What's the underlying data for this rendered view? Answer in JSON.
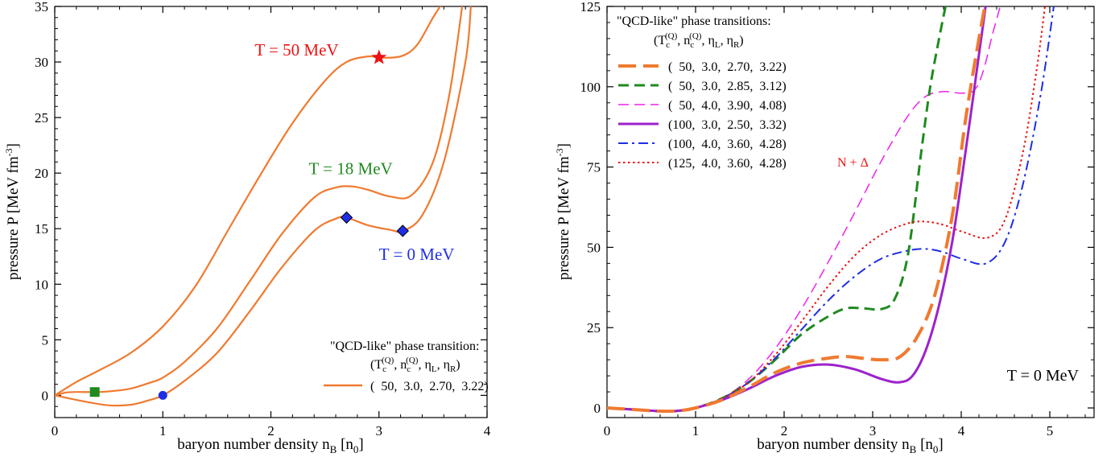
{
  "chart_data": [
    {
      "type": "line",
      "xlabel": "baryon number density n_B [n_0]",
      "ylabel": "pressure P [MeV fm^-3]",
      "xlim": [
        0,
        4
      ],
      "ylim": [
        -2,
        35
      ],
      "xticks": [
        "0",
        "1",
        "2",
        "3",
        "4"
      ],
      "yticks": [
        "0",
        "5",
        "10",
        "15",
        "20",
        "25",
        "30",
        "35"
      ],
      "grid": false,
      "series": [
        {
          "name": "T = 0 MeV",
          "color": "#f07a30",
          "x": [
            0,
            0.3,
            0.5,
            0.7,
            0.85,
            1.0,
            1.2,
            1.5,
            1.8,
            2.1,
            2.4,
            2.6,
            2.7,
            2.9,
            3.1,
            3.22,
            3.4,
            3.6,
            3.8,
            3.85
          ],
          "y": [
            0,
            -0.6,
            -0.9,
            -0.85,
            -0.5,
            0,
            1.3,
            3.8,
            7.5,
            11.5,
            14.8,
            15.9,
            16.0,
            15.3,
            14.9,
            14.8,
            16.2,
            21,
            30,
            35
          ]
        },
        {
          "name": "T = 18 MeV",
          "color": "#f07a30",
          "x": [
            0,
            0.1,
            0.2,
            0.37,
            0.5,
            0.7,
            0.9,
            1.0,
            1.2,
            1.5,
            1.8,
            2.1,
            2.4,
            2.6,
            2.75,
            2.9,
            3.1,
            3.3,
            3.5,
            3.65,
            3.77
          ],
          "y": [
            0,
            0.25,
            0.3,
            0.3,
            0.35,
            0.6,
            1.2,
            1.6,
            3.0,
            6.0,
            10.2,
            14.5,
            17.8,
            18.7,
            18.8,
            18.5,
            17.9,
            18.0,
            21.0,
            27,
            35
          ]
        },
        {
          "name": "T = 50 MeV",
          "color": "#f07a30",
          "x": [
            0,
            0.2,
            0.4,
            0.7,
            1.0,
            1.3,
            1.6,
            1.9,
            2.2,
            2.5,
            2.7,
            2.9,
            3.0,
            3.2,
            3.35,
            3.5,
            3.6,
            3.7
          ],
          "y": [
            0,
            1.2,
            2.2,
            3.8,
            6.2,
            9.8,
            14.8,
            19.8,
            24.5,
            28.3,
            30.0,
            30.5,
            30.4,
            30.5,
            31.5,
            34.0,
            35.5,
            37
          ]
        }
      ],
      "markers": [
        {
          "shape": "square",
          "color": "#1f8a1f",
          "x": 0.37,
          "y": 0.3
        },
        {
          "shape": "circle",
          "color": "#1e2ee6",
          "x": 1.0,
          "y": 0
        },
        {
          "shape": "diamond",
          "color": "#1e2ee6",
          "x": 2.7,
          "y": 16.0
        },
        {
          "shape": "diamond",
          "color": "#1e2ee6",
          "x": 3.22,
          "y": 14.8
        },
        {
          "shape": "star",
          "color": "#ee1111",
          "x": 3.0,
          "y": 30.4
        }
      ],
      "annotations": [
        {
          "text": "T = 50 MeV",
          "color": "#ee1111",
          "x": 1.85,
          "y": 30.6
        },
        {
          "text": "T = 18 MeV",
          "color": "#1f8a1f",
          "x": 2.35,
          "y": 19.9
        },
        {
          "text": "T = 0 MeV",
          "color": "#1e2ee6",
          "x": 3.0,
          "y": 12.2
        }
      ],
      "legend": {
        "placement": "bottom-right",
        "title": "\"QCD-like\" phase transition:",
        "header": [
          "(T_c^(Q),",
          "n_c^(Q),",
          "η_L,",
          "η_R)"
        ],
        "entries": [
          {
            "label": "(  50,  3.0,  2.70,  3.22)",
            "color": "#f07a30",
            "dash": "solid"
          }
        ]
      }
    },
    {
      "type": "line",
      "xlabel": "baryon number density n_B [n_0]",
      "ylabel": "pressure P [MeV fm^-3]",
      "xlim": [
        0,
        5.5
      ],
      "ylim": [
        -3,
        125
      ],
      "xticks": [
        "0",
        "1",
        "2",
        "3",
        "4",
        "5"
      ],
      "yticks": [
        "0",
        "25",
        "50",
        "75",
        "100",
        "125"
      ],
      "grid": false,
      "annotation": "T = 0 MeV",
      "series": [
        {
          "name": "(  50,  3.0,  2.70,  3.22)",
          "color": "#f07a30",
          "dash": "longdash",
          "width": 4,
          "x": [
            0,
            0.3,
            0.6,
            0.8,
            1.0,
            1.3,
            1.6,
            1.9,
            2.2,
            2.5,
            2.7,
            2.9,
            3.1,
            3.3,
            3.5,
            3.7,
            3.9,
            4.05,
            4.2,
            4.3
          ],
          "y": [
            0,
            -0.5,
            -1.0,
            -0.9,
            0,
            2.5,
            6.5,
            11.0,
            14.0,
            15.5,
            16.0,
            15.4,
            15.0,
            15.8,
            22.0,
            35.0,
            60.0,
            90.0,
            115.0,
            130.0
          ]
        },
        {
          "name": "(  50,  3.0,  2.85,  3.12)",
          "color": "#1f8a1f",
          "dash": "dash",
          "width": 3,
          "x": [
            0,
            0.3,
            0.6,
            0.8,
            1.0,
            1.3,
            1.6,
            1.9,
            2.2,
            2.5,
            2.7,
            2.9,
            3.1,
            3.25,
            3.4,
            3.55,
            3.65,
            3.75,
            3.83
          ],
          "y": [
            0,
            -0.5,
            -1.0,
            -0.9,
            0,
            3.0,
            8.0,
            15.0,
            23.0,
            28.5,
            31.0,
            31.0,
            30.8,
            34.0,
            48.0,
            80.0,
            100.0,
            115.0,
            126.0
          ]
        },
        {
          "name": "(  50,  4.0,  3.90,  4.08)",
          "color": "#ee22ee",
          "dash": "dash",
          "width": 1.5,
          "x": [
            0,
            0.3,
            0.6,
            0.8,
            1.0,
            1.3,
            1.6,
            1.9,
            2.2,
            2.5,
            2.8,
            3.1,
            3.4,
            3.6,
            3.8,
            4.0,
            4.15,
            4.25,
            4.35,
            4.45
          ],
          "y": [
            0,
            -0.5,
            -1.0,
            -0.9,
            0,
            3.0,
            9.0,
            18.5,
            31.0,
            45.5,
            61.0,
            77.0,
            91.0,
            97.0,
            98.5,
            98.0,
            99.0,
            105.0,
            116.0,
            126.0
          ]
        },
        {
          "name": "(100,  3.0,  2.50,  3.32)",
          "color": "#9c22cc",
          "dash": "solid",
          "width": 3,
          "x": [
            0,
            0.3,
            0.6,
            0.8,
            1.0,
            1.3,
            1.6,
            1.9,
            2.2,
            2.5,
            2.8,
            3.1,
            3.3,
            3.45,
            3.6,
            3.75,
            3.9,
            4.05,
            4.2,
            4.28
          ],
          "y": [
            0,
            -0.5,
            -1.0,
            -0.9,
            0,
            2.5,
            6.0,
            10.0,
            12.8,
            13.5,
            12.0,
            9.0,
            8.0,
            10.0,
            18.0,
            32.0,
            52.0,
            80.0,
            110.0,
            126.0
          ]
        },
        {
          "name": "(100,  4.0,  3.60,  4.28)",
          "color": "#1e2ee6",
          "dash": "dashdot",
          "width": 2,
          "x": [
            0,
            0.3,
            0.6,
            0.8,
            1.0,
            1.3,
            1.6,
            1.9,
            2.2,
            2.5,
            2.8,
            3.1,
            3.4,
            3.6,
            3.8,
            4.0,
            4.28,
            4.5,
            4.7,
            4.9,
            5.05
          ],
          "y": [
            0,
            -0.5,
            -1.0,
            -0.9,
            0,
            3.0,
            8.0,
            15.5,
            24.5,
            33.5,
            41.0,
            46.5,
            49.0,
            49.5,
            48.5,
            46.5,
            45.0,
            52.0,
            70.0,
            98.0,
            126.0
          ]
        },
        {
          "name": "(125,  4.0,  3.60,  4.28)",
          "color": "#ee1111",
          "dash": "dot",
          "width": 2,
          "x": [
            0,
            0.3,
            0.6,
            0.8,
            1.0,
            1.3,
            1.6,
            1.9,
            2.2,
            2.5,
            2.8,
            3.1,
            3.4,
            3.6,
            3.8,
            4.0,
            4.3,
            4.5,
            4.7,
            4.85,
            4.95
          ],
          "y": [
            0,
            -0.5,
            -1.0,
            -0.9,
            0,
            3.0,
            8.0,
            16.5,
            27.0,
            38.0,
            47.5,
            54.0,
            57.5,
            58.0,
            57.0,
            55.0,
            53.0,
            59.0,
            80.0,
            105.0,
            126.0
          ]
        }
      ],
      "legend": {
        "placement": "top-left",
        "title": "\"QCD-like\" phase transitions:",
        "header": [
          "(T_c^(Q),",
          "n_c^(Q),",
          "η_L,",
          "η_R)"
        ],
        "extra_label": {
          "text": "N + Δ",
          "color": "#ee1111"
        }
      }
    }
  ]
}
